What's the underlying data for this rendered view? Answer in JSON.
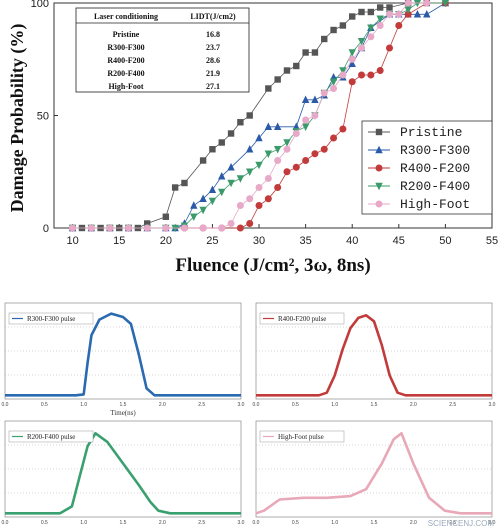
{
  "chart_data": [
    {
      "type": "line",
      "xlabel": "Fluence (J/cm², 3ω, 8ns)",
      "ylabel": "Damage Probability (%)",
      "xlim": [
        8,
        55
      ],
      "ylim": [
        0,
        100
      ],
      "x_ticks": [
        "10",
        "15",
        "20",
        "25",
        "30",
        "35",
        "40",
        "45",
        "50",
        "55"
      ],
      "y_ticks": [
        "0",
        "50",
        "100"
      ],
      "legend_position": "right",
      "series": [
        {
          "name": "Pristine",
          "color": "#555555",
          "marker": "square",
          "points": [
            [
              10,
              0
            ],
            [
              11,
              0
            ],
            [
              12,
              0
            ],
            [
              13,
              0
            ],
            [
              14,
              0
            ],
            [
              15,
              0
            ],
            [
              16,
              0
            ],
            [
              17,
              0
            ],
            [
              18,
              2
            ],
            [
              20,
              5
            ],
            [
              21,
              18
            ],
            [
              22,
              20
            ],
            [
              24,
              30
            ],
            [
              25,
              35
            ],
            [
              26,
              38
            ],
            [
              27,
              42
            ],
            [
              28,
              47
            ],
            [
              29,
              50
            ],
            [
              31,
              62
            ],
            [
              32,
              66
            ],
            [
              33,
              70
            ],
            [
              34,
              72
            ],
            [
              35,
              78
            ],
            [
              36,
              78
            ],
            [
              37,
              84
            ],
            [
              38,
              88
            ],
            [
              39,
              90
            ],
            [
              40,
              94
            ],
            [
              41,
              96
            ],
            [
              42,
              96
            ],
            [
              43,
              98
            ],
            [
              44,
              98
            ],
            [
              46,
              100
            ],
            [
              48,
              100
            ]
          ]
        },
        {
          "name": "R300-F300",
          "color": "#2a5aa8",
          "marker": "triangle",
          "points": [
            [
              10,
              0
            ],
            [
              12,
              0
            ],
            [
              14,
              0
            ],
            [
              16,
              0
            ],
            [
              18,
              0
            ],
            [
              20,
              0
            ],
            [
              21,
              0
            ],
            [
              22,
              2
            ],
            [
              23,
              10
            ],
            [
              24,
              13
            ],
            [
              25,
              17
            ],
            [
              26,
              23
            ],
            [
              27,
              27
            ],
            [
              29,
              35
            ],
            [
              30,
              40
            ],
            [
              31,
              45
            ],
            [
              32,
              45
            ],
            [
              34,
              45
            ],
            [
              35,
              57
            ],
            [
              36,
              57
            ],
            [
              37,
              59
            ],
            [
              38,
              67
            ],
            [
              39,
              67
            ],
            [
              40,
              73
            ],
            [
              41,
              80
            ],
            [
              42,
              89
            ],
            [
              44,
              95
            ],
            [
              45,
              95
            ],
            [
              46,
              95
            ],
            [
              47,
              95
            ],
            [
              48,
              95
            ],
            [
              50,
              100
            ]
          ]
        },
        {
          "name": "R400-F200",
          "color": "#c23a3a",
          "marker": "circle",
          "points": [
            [
              10,
              0
            ],
            [
              12,
              0
            ],
            [
              14,
              0
            ],
            [
              16,
              0
            ],
            [
              18,
              0
            ],
            [
              20,
              0
            ],
            [
              22,
              0
            ],
            [
              24,
              0
            ],
            [
              26,
              0
            ],
            [
              28,
              0
            ],
            [
              29,
              2
            ],
            [
              30,
              10
            ],
            [
              31,
              13
            ],
            [
              32,
              18
            ],
            [
              33,
              25
            ],
            [
              34,
              27
            ],
            [
              35,
              30
            ],
            [
              36,
              33
            ],
            [
              37,
              35
            ],
            [
              38,
              40
            ],
            [
              39,
              44
            ],
            [
              40,
              65
            ],
            [
              41,
              68
            ],
            [
              42,
              68
            ],
            [
              43,
              70
            ],
            [
              44,
              80
            ],
            [
              45,
              90
            ],
            [
              46,
              95
            ],
            [
              48,
              100
            ],
            [
              50,
              100
            ]
          ]
        },
        {
          "name": "R200-F400",
          "color": "#3a9a6a",
          "marker": "triangle-down",
          "points": [
            [
              10,
              0
            ],
            [
              12,
              0
            ],
            [
              14,
              0
            ],
            [
              16,
              0
            ],
            [
              18,
              0
            ],
            [
              20,
              0
            ],
            [
              21,
              0
            ],
            [
              22,
              1
            ],
            [
              23,
              5
            ],
            [
              24,
              8
            ],
            [
              25,
              12
            ],
            [
              26,
              16
            ],
            [
              27,
              20
            ],
            [
              28,
              22
            ],
            [
              29,
              25
            ],
            [
              30,
              28
            ],
            [
              31,
              33
            ],
            [
              32,
              35
            ],
            [
              33,
              38
            ],
            [
              34,
              43
            ],
            [
              35,
              45
            ],
            [
              36,
              50
            ],
            [
              37,
              60
            ],
            [
              38,
              65
            ],
            [
              39,
              70
            ],
            [
              40,
              78
            ],
            [
              41,
              83
            ],
            [
              42,
              89
            ],
            [
              43,
              93
            ],
            [
              44,
              95
            ],
            [
              45,
              95
            ],
            [
              46,
              97
            ],
            [
              47,
              100
            ],
            [
              50,
              100
            ]
          ]
        },
        {
          "name": "High-Foot",
          "color": "#e8a8c8",
          "marker": "circle",
          "points": [
            [
              10,
              0
            ],
            [
              12,
              0
            ],
            [
              14,
              0
            ],
            [
              16,
              0
            ],
            [
              18,
              0
            ],
            [
              20,
              0
            ],
            [
              22,
              0
            ],
            [
              24,
              0
            ],
            [
              26,
              0
            ],
            [
              27,
              2
            ],
            [
              28,
              10
            ],
            [
              29,
              13
            ],
            [
              30,
              18
            ],
            [
              31,
              22
            ],
            [
              32,
              30
            ],
            [
              33,
              35
            ],
            [
              34,
              42
            ],
            [
              35,
              48
            ],
            [
              36,
              50
            ],
            [
              37,
              60
            ],
            [
              38,
              62
            ],
            [
              39,
              68
            ],
            [
              40,
              75
            ],
            [
              41,
              80
            ],
            [
              42,
              85
            ],
            [
              43,
              90
            ],
            [
              44,
              95
            ],
            [
              45,
              95
            ],
            [
              46,
              100
            ],
            [
              48,
              100
            ]
          ]
        }
      ],
      "table": {
        "headers": [
          "Laser conditioning",
          "LIDT(J/cm2)"
        ],
        "rows": [
          [
            "Pristine",
            "16.8"
          ],
          [
            "R300-F300",
            "23.7"
          ],
          [
            "R400-F200",
            "28.6"
          ],
          [
            "R200-F400",
            "21.9"
          ],
          [
            "High-Foot",
            "27.1"
          ]
        ]
      }
    },
    {
      "type": "line",
      "legend": "R300-F300 pulse",
      "color": "#2a6ab0",
      "xlabel": "Time(ns)",
      "xlim": [
        0,
        3
      ],
      "x_ticks": [
        "0.0",
        "0.5",
        "1.0",
        "1.5",
        "2.0",
        "2.5",
        "3.0"
      ],
      "ylim": [
        0,
        1
      ],
      "shape": [
        [
          0,
          0.02
        ],
        [
          0.3,
          0.02
        ],
        [
          0.6,
          0.02
        ],
        [
          0.9,
          0.02
        ],
        [
          1.0,
          0.03
        ],
        [
          1.05,
          0.4
        ],
        [
          1.1,
          0.72
        ],
        [
          1.2,
          0.9
        ],
        [
          1.35,
          0.97
        ],
        [
          1.5,
          0.93
        ],
        [
          1.6,
          0.85
        ],
        [
          1.7,
          0.5
        ],
        [
          1.8,
          0.1
        ],
        [
          1.9,
          0.02
        ],
        [
          2.2,
          0.02
        ],
        [
          2.5,
          0.02
        ],
        [
          3.0,
          0.02
        ]
      ]
    },
    {
      "type": "line",
      "legend": "R400-F200 pulse",
      "color": "#c23a3a",
      "xlabel": "",
      "xlim": [
        0,
        3
      ],
      "x_ticks": [
        "0.0",
        "0.5",
        "1.0",
        "1.5",
        "2.0",
        "2.5",
        "3.0"
      ],
      "ylim": [
        0,
        1
      ],
      "shape": [
        [
          0,
          0.02
        ],
        [
          0.4,
          0.02
        ],
        [
          0.8,
          0.02
        ],
        [
          0.9,
          0.05
        ],
        [
          1.0,
          0.25
        ],
        [
          1.1,
          0.55
        ],
        [
          1.2,
          0.8
        ],
        [
          1.3,
          0.92
        ],
        [
          1.4,
          0.95
        ],
        [
          1.5,
          0.88
        ],
        [
          1.6,
          0.6
        ],
        [
          1.7,
          0.25
        ],
        [
          1.8,
          0.05
        ],
        [
          1.9,
          0.02
        ],
        [
          2.5,
          0.02
        ],
        [
          3.0,
          0.02
        ]
      ]
    },
    {
      "type": "line",
      "legend": "R200-F400 pulse",
      "color": "#3aa070",
      "xlabel": "",
      "xlim": [
        0,
        3
      ],
      "x_ticks": [
        "0.0",
        "0.5",
        "1.0",
        "1.5",
        "2.0",
        "2.5",
        "3.0"
      ],
      "ylim": [
        0,
        1
      ],
      "shape": [
        [
          0,
          0.02
        ],
        [
          0.4,
          0.02
        ],
        [
          0.7,
          0.02
        ],
        [
          0.85,
          0.1
        ],
        [
          0.95,
          0.45
        ],
        [
          1.05,
          0.8
        ],
        [
          1.15,
          0.95
        ],
        [
          1.3,
          0.85
        ],
        [
          1.5,
          0.6
        ],
        [
          1.7,
          0.35
        ],
        [
          1.85,
          0.15
        ],
        [
          1.95,
          0.05
        ],
        [
          2.1,
          0.02
        ],
        [
          2.5,
          0.02
        ],
        [
          3.0,
          0.02
        ]
      ]
    },
    {
      "type": "line",
      "legend": "High-Foot pulse",
      "color": "#e8a8b8",
      "xlabel": "",
      "xlim": [
        0,
        3
      ],
      "x_ticks": [
        "0.0",
        "0.5",
        "1.0",
        "1.5",
        "2.0",
        "2.5",
        "3.0"
      ],
      "ylim": [
        0,
        1
      ],
      "shape": [
        [
          0,
          0.02
        ],
        [
          0.1,
          0.05
        ],
        [
          0.3,
          0.18
        ],
        [
          0.6,
          0.2
        ],
        [
          0.9,
          0.2
        ],
        [
          1.2,
          0.22
        ],
        [
          1.4,
          0.3
        ],
        [
          1.6,
          0.6
        ],
        [
          1.75,
          0.88
        ],
        [
          1.85,
          0.95
        ],
        [
          2.0,
          0.6
        ],
        [
          2.2,
          0.2
        ],
        [
          2.4,
          0.05
        ],
        [
          2.6,
          0.02
        ],
        [
          3.0,
          0.02
        ]
      ]
    }
  ],
  "watermark": "SCIENCENJ.COM"
}
